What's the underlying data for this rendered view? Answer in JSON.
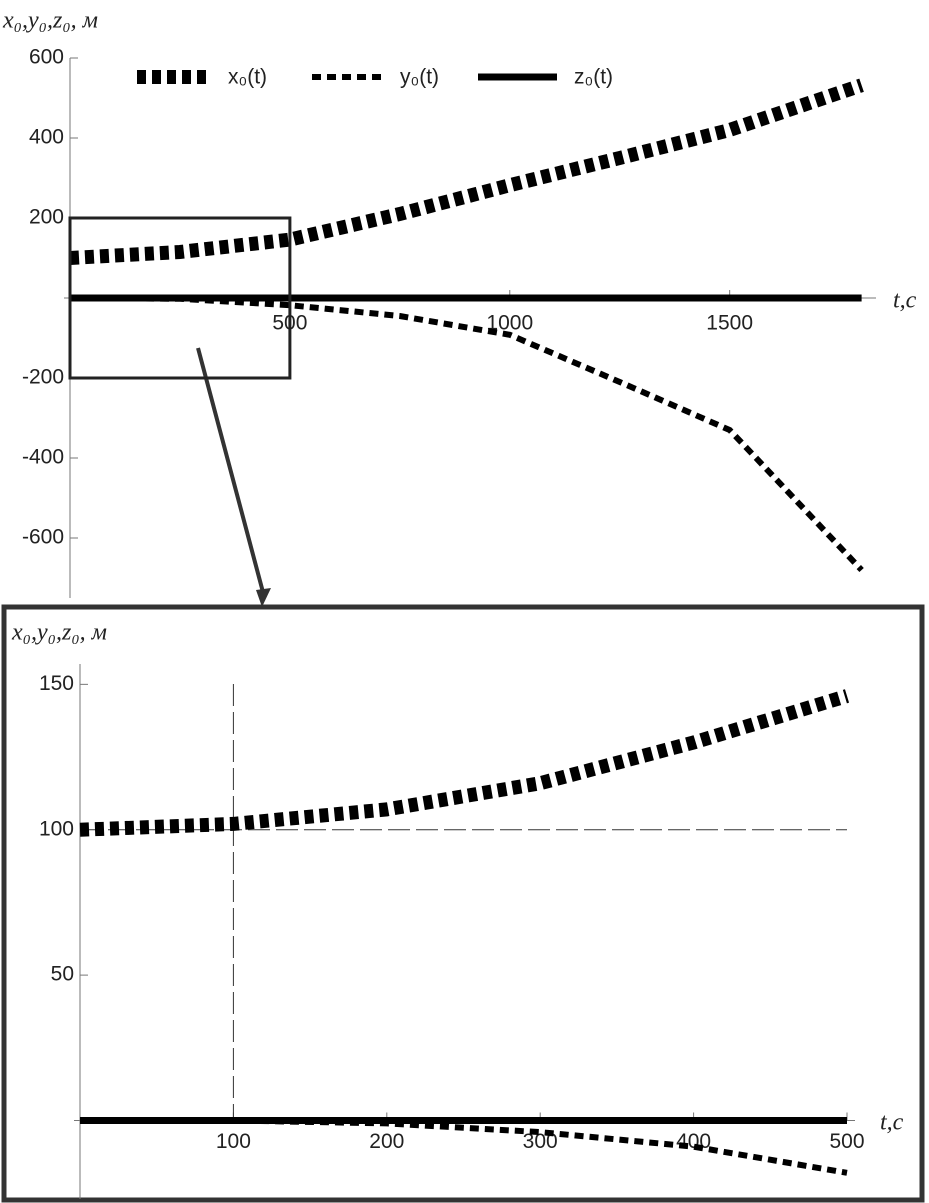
{
  "chart_data": [
    {
      "type": "line",
      "y_label": "x₀,y₀,z₀, м",
      "x_label": "t,c",
      "x": [
        0,
        250,
        500,
        750,
        1000,
        1250,
        1500,
        1800
      ],
      "series": [
        {
          "name": "x₀(t)",
          "color": "#000000",
          "line_style": "thick-dashed",
          "values": [
            100,
            115,
            146,
            210,
            282,
            350,
            420,
            532
          ]
        },
        {
          "name": "y₀(t)",
          "color": "#000000",
          "line_style": "dashed",
          "values": [
            0,
            -2,
            -18,
            -45,
            -92,
            -210,
            -330,
            -680
          ]
        },
        {
          "name": "z₀(t)",
          "color": "#000000",
          "line_style": "solid",
          "values": [
            0,
            0,
            0,
            0,
            0,
            0,
            0,
            0
          ]
        }
      ],
      "xlim": [
        0,
        1810
      ],
      "xticks": [
        500,
        1000,
        1500
      ],
      "ylim": [
        -750,
        600
      ],
      "yticks": [
        600,
        400,
        200,
        -200,
        -400,
        -600
      ],
      "zoom_box": {
        "xlim": [
          0,
          500
        ],
        "ylim": [
          -200,
          200
        ]
      },
      "legend": "top"
    },
    {
      "type": "line",
      "y_label": "x₀,y₀,z₀, м",
      "x_label": "t,c",
      "x": [
        0,
        100,
        200,
        300,
        400,
        500
      ],
      "series": [
        {
          "color": "#000000",
          "line_style": "thick-dashed",
          "values": [
            100,
            102,
            107,
            116,
            130,
            146
          ]
        },
        {
          "color": "#000000",
          "line_style": "dashed",
          "values": [
            0,
            0,
            -1,
            -4,
            -9,
            -18
          ]
        },
        {
          "color": "#000000",
          "line_style": "solid",
          "values": [
            0,
            0,
            0,
            0,
            0,
            0
          ]
        }
      ],
      "xlim": [
        0,
        500
      ],
      "xticks": [
        100,
        200,
        300,
        400,
        500
      ],
      "ylim": [
        -27,
        157
      ],
      "yticks": [
        150,
        100,
        50
      ],
      "guides": {
        "x": 100,
        "y": 100
      }
    }
  ]
}
